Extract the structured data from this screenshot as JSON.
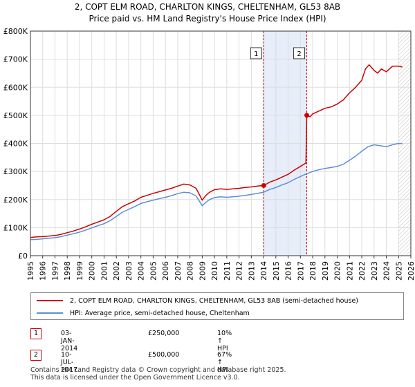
{
  "chart_data": {
    "type": "line",
    "title": "2, COPT ELM ROAD, CHARLTON KINGS, CHELTENHAM, GL53 8AB",
    "subtitle": "Price paid vs. HM Land Registry's House Price Index (HPI)",
    "xlabel": "",
    "ylabel": "",
    "xlim": [
      1995,
      2026
    ],
    "ylim": [
      0,
      800000
    ],
    "grid": true,
    "yticks": [
      {
        "value": 0,
        "label": "£0"
      },
      {
        "value": 100000,
        "label": "£100K"
      },
      {
        "value": 200000,
        "label": "£200K"
      },
      {
        "value": 300000,
        "label": "£300K"
      },
      {
        "value": 400000,
        "label": "£400K"
      },
      {
        "value": 500000,
        "label": "£500K"
      },
      {
        "value": 600000,
        "label": "£600K"
      },
      {
        "value": 700000,
        "label": "£700K"
      },
      {
        "value": 800000,
        "label": "£800K"
      }
    ],
    "xticks": [
      "1995",
      "1996",
      "1997",
      "1998",
      "1999",
      "2000",
      "2001",
      "2002",
      "2003",
      "2004",
      "2005",
      "2006",
      "2007",
      "2008",
      "2009",
      "2010",
      "2011",
      "2012",
      "2013",
      "2014",
      "2015",
      "2016",
      "2017",
      "2018",
      "2019",
      "2020",
      "2021",
      "2022",
      "2023",
      "2024",
      "2025",
      "2026"
    ],
    "shaded_span": [
      2014.01,
      2017.52
    ],
    "forecast_start": 2025.0,
    "series": [
      {
        "name": "2, COPT ELM ROAD, CHARLTON KINGS, CHELTENHAM, GL53 8AB (semi-detached house)",
        "color": "#cc0000",
        "x": [
          1995.0,
          1995.5,
          1996.0,
          1996.5,
          1997.0,
          1997.5,
          1998.0,
          1998.5,
          1999.0,
          1999.5,
          2000.0,
          2000.5,
          2001.0,
          2001.5,
          2002.0,
          2002.5,
          2003.0,
          2003.5,
          2004.0,
          2004.5,
          2005.0,
          2005.5,
          2006.0,
          2006.5,
          2007.0,
          2007.5,
          2008.0,
          2008.5,
          2009.0,
          2009.3,
          2009.6,
          2010.0,
          2010.5,
          2011.0,
          2011.5,
          2012.0,
          2012.5,
          2013.0,
          2013.5,
          2014.01,
          2014.5,
          2015.0,
          2015.5,
          2016.0,
          2016.5,
          2017.0,
          2017.45,
          2017.52,
          2017.8,
          2018.0,
          2018.5,
          2019.0,
          2019.5,
          2020.0,
          2020.5,
          2021.0,
          2021.5,
          2022.0,
          2022.3,
          2022.6,
          2023.0,
          2023.3,
          2023.6,
          2024.0,
          2024.5,
          2025.0,
          2025.3
        ],
        "values": [
          65000,
          67000,
          68000,
          70000,
          72000,
          76000,
          82000,
          88000,
          95000,
          103000,
          112000,
          120000,
          128000,
          140000,
          158000,
          175000,
          185000,
          195000,
          208000,
          215000,
          222000,
          228000,
          234000,
          240000,
          248000,
          255000,
          252000,
          240000,
          198000,
          215000,
          226000,
          235000,
          238000,
          236000,
          238000,
          240000,
          243000,
          245000,
          248000,
          250000,
          262000,
          270000,
          280000,
          290000,
          305000,
          318000,
          330000,
          500000,
          495000,
          505000,
          515000,
          525000,
          530000,
          540000,
          555000,
          580000,
          600000,
          625000,
          665000,
          680000,
          660000,
          650000,
          665000,
          655000,
          675000,
          675000,
          672000
        ]
      },
      {
        "name": "HPI: Average price, semi-detached house, Cheltenham",
        "color": "#5b8fd4",
        "x": [
          1995.0,
          1995.5,
          1996.0,
          1996.5,
          1997.0,
          1997.5,
          1998.0,
          1998.5,
          1999.0,
          1999.5,
          2000.0,
          2000.5,
          2001.0,
          2001.5,
          2002.0,
          2002.5,
          2003.0,
          2003.5,
          2004.0,
          2004.5,
          2005.0,
          2005.5,
          2006.0,
          2006.5,
          2007.0,
          2007.5,
          2008.0,
          2008.5,
          2009.0,
          2009.3,
          2009.6,
          2010.0,
          2010.5,
          2011.0,
          2011.5,
          2012.0,
          2012.5,
          2013.0,
          2013.5,
          2014.0,
          2014.5,
          2015.0,
          2015.5,
          2016.0,
          2016.5,
          2017.0,
          2017.5,
          2018.0,
          2018.5,
          2019.0,
          2019.5,
          2020.0,
          2020.5,
          2021.0,
          2021.5,
          2022.0,
          2022.5,
          2023.0,
          2023.5,
          2024.0,
          2024.5,
          2025.0,
          2025.3
        ],
        "values": [
          57000,
          58000,
          60000,
          62000,
          64000,
          68000,
          73000,
          78000,
          84000,
          91000,
          99000,
          107000,
          114000,
          125000,
          140000,
          155000,
          165000,
          175000,
          186000,
          192000,
          198000,
          203000,
          208000,
          214000,
          221000,
          226000,
          224000,
          213000,
          178000,
          190000,
          200000,
          207000,
          210000,
          208000,
          210000,
          212000,
          215000,
          218000,
          222000,
          226000,
          236000,
          243000,
          252000,
          260000,
          272000,
          282000,
          292000,
          300000,
          306000,
          311000,
          314000,
          318000,
          326000,
          340000,
          355000,
          372000,
          388000,
          395000,
          392000,
          388000,
          395000,
          400000,
          399000
        ]
      }
    ],
    "annotations": [
      {
        "label": "1",
        "x": 2014.01,
        "value": 250000
      },
      {
        "label": "2",
        "x": 2017.52,
        "value": 500000
      }
    ]
  },
  "legend": {
    "property_label": "2, COPT ELM ROAD, CHARLTON KINGS, CHELTENHAM, GL53 8AB (semi-detached house)",
    "hpi_label": "HPI: Average price, semi-detached house, Cheltenham"
  },
  "sales": [
    {
      "num": "1",
      "date": "03-JAN-2014",
      "price": "£250,000",
      "hpi": "10% ↑ HPI"
    },
    {
      "num": "2",
      "date": "10-JUL-2017",
      "price": "£500,000",
      "hpi": "67% ↑ HPI"
    }
  ],
  "footer": {
    "line1": "Contains HM Land Registry data © Crown copyright and database right 2025.",
    "line2": "This data is licensed under the Open Government Licence v3.0."
  },
  "colors": {
    "property": "#cc0000",
    "hpi": "#5b8fd4",
    "shade": "#dde6f7",
    "grid": "#dddddd"
  }
}
